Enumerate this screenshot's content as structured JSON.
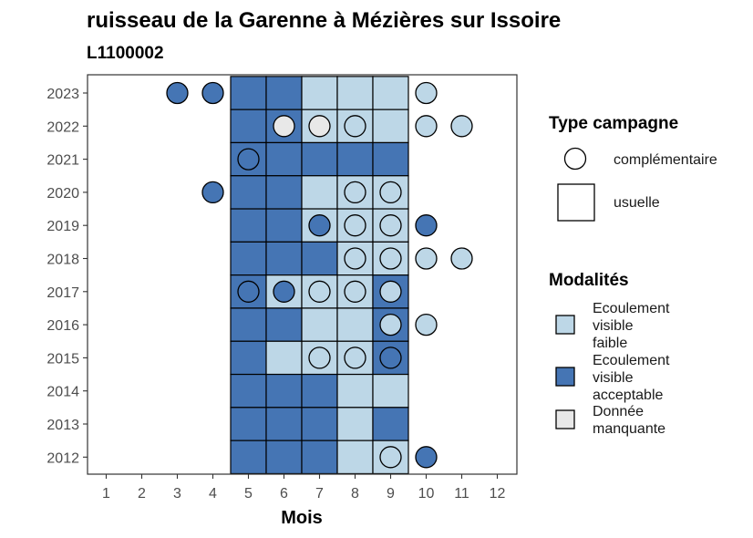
{
  "chart_data": {
    "type": "heatmap",
    "title": "ruisseau de la Garenne à Mézières sur Issoire",
    "subtitle": "L1100002",
    "xlabel": "Mois",
    "ylabel": "",
    "x_ticks": [
      "1",
      "2",
      "3",
      "4",
      "5",
      "6",
      "7",
      "8",
      "9",
      "10",
      "11",
      "12"
    ],
    "y_ticks": [
      "2012",
      "2013",
      "2014",
      "2015",
      "2016",
      "2017",
      "2018",
      "2019",
      "2020",
      "2021",
      "2022",
      "2023"
    ],
    "xlim": [
      0.5,
      12.5
    ],
    "ylim": [
      2011.5,
      2023.5
    ],
    "colors": {
      "faible": "#bdd7e7",
      "acceptable": "#4575b4",
      "manquante": "#e8e8e8"
    },
    "legend_type": {
      "title": "Type campagne",
      "items": [
        {
          "label": "complémentaire",
          "shape": "circle"
        },
        {
          "label": "usuelle",
          "shape": "square"
        }
      ]
    },
    "legend_modalites": {
      "title": "Modalités",
      "items": [
        {
          "key": "faible",
          "label_lines": [
            "Ecoulement",
            "visible",
            "faible"
          ]
        },
        {
          "key": "acceptable",
          "label_lines": [
            "Ecoulement",
            "visible",
            "acceptable"
          ]
        },
        {
          "key": "manquante",
          "label_lines": [
            "Donnée",
            "manquante"
          ]
        }
      ]
    },
    "usuelle": [
      {
        "year": 2023,
        "values": {
          "5": "acceptable",
          "6": "acceptable",
          "7": "faible",
          "8": "faible",
          "9": "faible"
        }
      },
      {
        "year": 2022,
        "values": {
          "5": "acceptable",
          "6": "acceptable",
          "7": "faible",
          "8": "faible",
          "9": "faible"
        }
      },
      {
        "year": 2021,
        "values": {
          "5": "acceptable",
          "6": "acceptable",
          "7": "acceptable",
          "8": "acceptable",
          "9": "acceptable"
        }
      },
      {
        "year": 2020,
        "values": {
          "5": "acceptable",
          "6": "acceptable",
          "7": "faible",
          "8": "faible",
          "9": "faible"
        }
      },
      {
        "year": 2019,
        "values": {
          "5": "acceptable",
          "6": "acceptable",
          "7": "faible",
          "8": "faible",
          "9": "faible"
        }
      },
      {
        "year": 2018,
        "values": {
          "5": "acceptable",
          "6": "acceptable",
          "7": "acceptable",
          "8": "faible",
          "9": "faible"
        }
      },
      {
        "year": 2017,
        "values": {
          "5": "acceptable",
          "6": "faible",
          "7": "faible",
          "8": "faible",
          "9": "acceptable"
        }
      },
      {
        "year": 2016,
        "values": {
          "5": "acceptable",
          "6": "acceptable",
          "7": "faible",
          "8": "faible",
          "9": "acceptable"
        }
      },
      {
        "year": 2015,
        "values": {
          "5": "acceptable",
          "6": "faible",
          "7": "faible",
          "8": "faible",
          "9": "acceptable"
        }
      },
      {
        "year": 2014,
        "values": {
          "5": "acceptable",
          "6": "acceptable",
          "7": "acceptable",
          "8": "faible",
          "9": "faible"
        }
      },
      {
        "year": 2013,
        "values": {
          "5": "acceptable",
          "6": "acceptable",
          "7": "acceptable",
          "8": "faible",
          "9": "acceptable"
        }
      },
      {
        "year": 2012,
        "values": {
          "5": "acceptable",
          "6": "acceptable",
          "7": "acceptable",
          "8": "faible",
          "9": "faible"
        }
      }
    ],
    "complementaire": [
      {
        "year": 2023,
        "month": 3,
        "value": "acceptable"
      },
      {
        "year": 2023,
        "month": 4,
        "value": "acceptable"
      },
      {
        "year": 2023,
        "month": 10,
        "value": "faible"
      },
      {
        "year": 2022,
        "month": 6,
        "value": "manquante"
      },
      {
        "year": 2022,
        "month": 7,
        "value": "manquante"
      },
      {
        "year": 2022,
        "month": 8,
        "value": "faible"
      },
      {
        "year": 2022,
        "month": 10,
        "value": "faible"
      },
      {
        "year": 2022,
        "month": 11,
        "value": "faible"
      },
      {
        "year": 2021,
        "month": 5,
        "value": "acceptable"
      },
      {
        "year": 2020,
        "month": 4,
        "value": "acceptable"
      },
      {
        "year": 2020,
        "month": 8,
        "value": "faible"
      },
      {
        "year": 2020,
        "month": 9,
        "value": "faible"
      },
      {
        "year": 2019,
        "month": 7,
        "value": "acceptable"
      },
      {
        "year": 2019,
        "month": 8,
        "value": "faible"
      },
      {
        "year": 2019,
        "month": 9,
        "value": "faible"
      },
      {
        "year": 2019,
        "month": 10,
        "value": "acceptable"
      },
      {
        "year": 2018,
        "month": 8,
        "value": "faible"
      },
      {
        "year": 2018,
        "month": 9,
        "value": "faible"
      },
      {
        "year": 2018,
        "month": 10,
        "value": "faible"
      },
      {
        "year": 2018,
        "month": 11,
        "value": "faible"
      },
      {
        "year": 2017,
        "month": 5,
        "value": "acceptable"
      },
      {
        "year": 2017,
        "month": 6,
        "value": "acceptable"
      },
      {
        "year": 2017,
        "month": 7,
        "value": "faible"
      },
      {
        "year": 2017,
        "month": 8,
        "value": "faible"
      },
      {
        "year": 2017,
        "month": 9,
        "value": "faible"
      },
      {
        "year": 2016,
        "month": 9,
        "value": "faible"
      },
      {
        "year": 2016,
        "month": 10,
        "value": "faible"
      },
      {
        "year": 2015,
        "month": 7,
        "value": "faible"
      },
      {
        "year": 2015,
        "month": 8,
        "value": "faible"
      },
      {
        "year": 2015,
        "month": 9,
        "value": "acceptable"
      },
      {
        "year": 2012,
        "month": 9,
        "value": "faible"
      },
      {
        "year": 2012,
        "month": 10,
        "value": "acceptable"
      }
    ]
  }
}
